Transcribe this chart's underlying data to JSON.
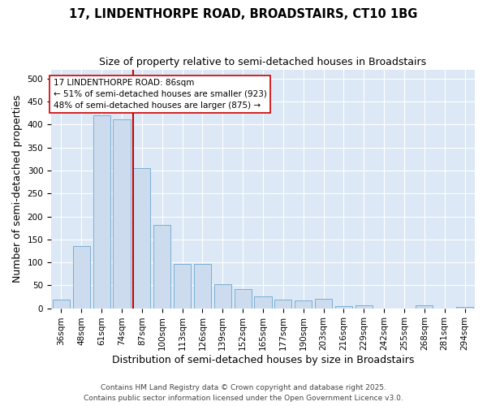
{
  "title": "17, LINDENTHORPE ROAD, BROADSTAIRS, CT10 1BG",
  "subtitle": "Size of property relative to semi-detached houses in Broadstairs",
  "xlabel": "Distribution of semi-detached houses by size in Broadstairs",
  "ylabel": "Number of semi-detached properties",
  "footer": "Contains HM Land Registry data © Crown copyright and database right 2025.\nContains public sector information licensed under the Open Government Licence v3.0.",
  "categories": [
    "36sqm",
    "48sqm",
    "61sqm",
    "74sqm",
    "87sqm",
    "100sqm",
    "113sqm",
    "126sqm",
    "139sqm",
    "152sqm",
    "165sqm",
    "177sqm",
    "190sqm",
    "203sqm",
    "216sqm",
    "229sqm",
    "242sqm",
    "255sqm",
    "268sqm",
    "281sqm",
    "294sqm"
  ],
  "values": [
    18,
    135,
    420,
    412,
    305,
    182,
    97,
    96,
    53,
    42,
    26,
    18,
    17,
    20,
    5,
    7,
    0,
    0,
    6,
    0,
    2
  ],
  "bar_color": "#ccdcee",
  "bar_edge_color": "#7aafd4",
  "vline_color": "#cc0000",
  "vline_index": 4,
  "annotation_text": "17 LINDENTHORPE ROAD: 86sqm\n← 51% of semi-detached houses are smaller (923)\n48% of semi-detached houses are larger (875) →",
  "annotation_box_facecolor": "#ffffff",
  "annotation_box_edgecolor": "#cc0000",
  "ylim": [
    0,
    520
  ],
  "yticks": [
    0,
    50,
    100,
    150,
    200,
    250,
    300,
    350,
    400,
    450,
    500
  ],
  "background_color": "#dce8f5",
  "grid_color": "#ffffff",
  "fig_background": "#ffffff",
  "title_fontsize": 10.5,
  "subtitle_fontsize": 9,
  "axis_label_fontsize": 9,
  "tick_fontsize": 7.5,
  "annotation_fontsize": 7.5,
  "footer_fontsize": 6.5
}
